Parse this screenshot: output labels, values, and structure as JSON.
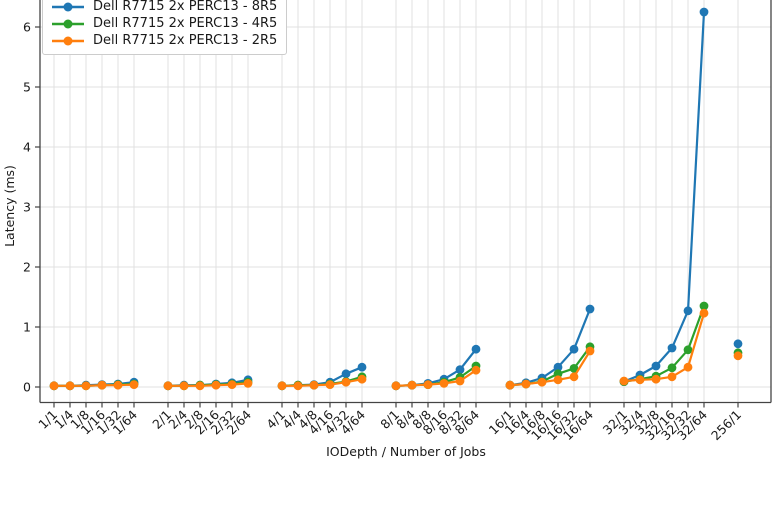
{
  "chart_data": {
    "type": "line",
    "xlabel": "IODepth / Number of Jobs",
    "ylabel": "Latency (ms)",
    "grid": true,
    "legend_position": "upper-left",
    "ylim": [
      0,
      6.6
    ],
    "y_ticks": [
      0,
      1,
      2,
      3,
      4,
      5,
      6
    ],
    "group_size": 6,
    "x_tick_labels": [
      "1/1",
      "1/4",
      "1/8",
      "1/16",
      "1/32",
      "1/64",
      "2/1",
      "2/4",
      "2/8",
      "2/16",
      "2/32",
      "2/64",
      "4/1",
      "4/4",
      "4/8",
      "4/16",
      "4/32",
      "4/64",
      "8/1",
      "8/4",
      "8/8",
      "8/16",
      "8/32",
      "8/64",
      "16/1",
      "16/4",
      "16/8",
      "16/16",
      "16/32",
      "16/64",
      "32/1",
      "32/4",
      "32/8",
      "32/16",
      "32/32",
      "32/64",
      "256/1"
    ],
    "series": [
      {
        "name": "Dell R7715 2x PERC13 - 8R5",
        "color": "#1f77b4",
        "values": [
          0.02,
          0.02,
          0.03,
          0.04,
          0.05,
          0.08,
          0.02,
          0.03,
          0.03,
          0.05,
          0.07,
          0.12,
          0.02,
          0.03,
          0.04,
          0.08,
          0.22,
          0.33,
          0.02,
          0.03,
          0.06,
          0.13,
          0.29,
          0.63,
          0.03,
          0.07,
          0.15,
          0.33,
          0.63,
          1.3,
          0.09,
          0.2,
          0.35,
          0.65,
          1.27,
          6.25,
          0.72
        ]
      },
      {
        "name": "Dell R7715 2x PERC13 - 4R5",
        "color": "#2ca02c",
        "values": [
          0.02,
          0.02,
          0.02,
          0.03,
          0.04,
          0.05,
          0.02,
          0.02,
          0.03,
          0.04,
          0.05,
          0.08,
          0.02,
          0.03,
          0.03,
          0.05,
          0.09,
          0.17,
          0.02,
          0.03,
          0.04,
          0.08,
          0.16,
          0.35,
          0.03,
          0.05,
          0.09,
          0.22,
          0.31,
          0.67,
          0.09,
          0.13,
          0.18,
          0.32,
          0.62,
          1.35,
          0.57
        ]
      },
      {
        "name": "Dell R7715 2x PERC13 - 2R5",
        "color": "#ff7f0e",
        "values": [
          0.02,
          0.02,
          0.02,
          0.03,
          0.03,
          0.04,
          0.02,
          0.02,
          0.02,
          0.03,
          0.04,
          0.06,
          0.02,
          0.02,
          0.03,
          0.04,
          0.08,
          0.13,
          0.02,
          0.03,
          0.04,
          0.06,
          0.1,
          0.28,
          0.03,
          0.05,
          0.08,
          0.12,
          0.17,
          0.6,
          0.1,
          0.12,
          0.13,
          0.17,
          0.33,
          1.23,
          0.52
        ]
      }
    ]
  }
}
